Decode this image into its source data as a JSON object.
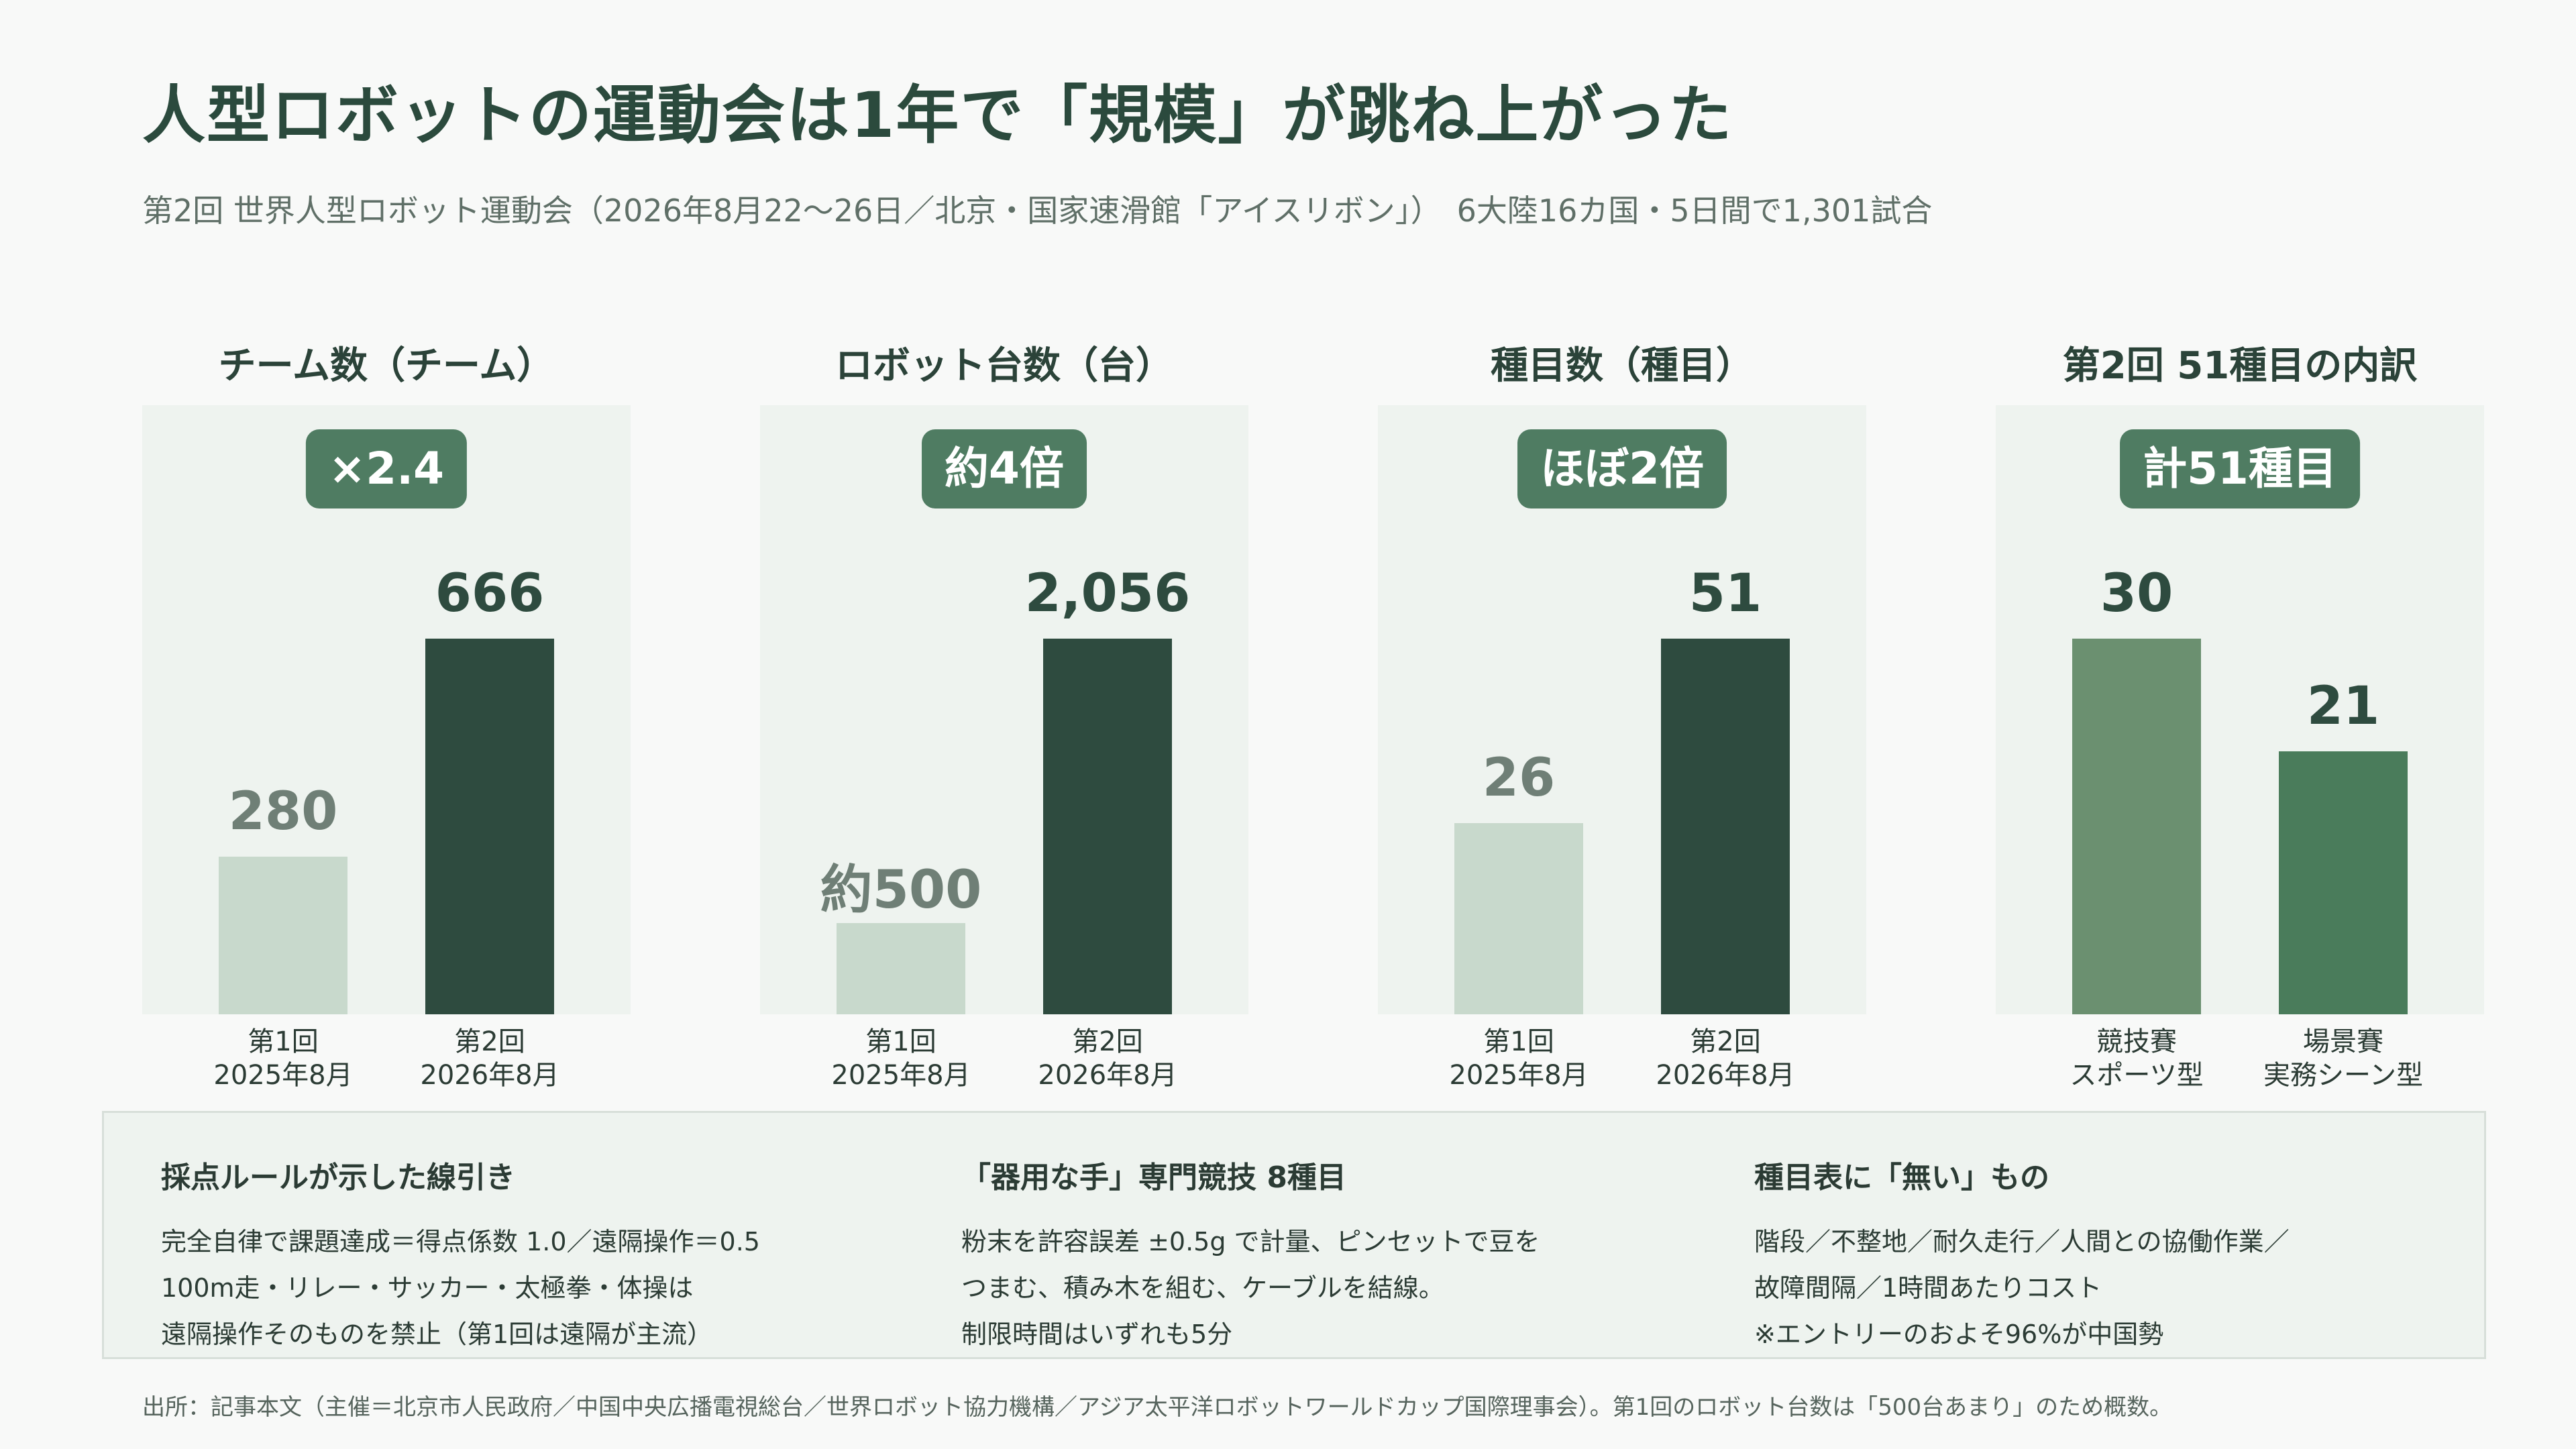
{
  "title": "人型ロボットの運動会は1年で「規模」が跳ね上がった",
  "subtitle": "第2回 世界人型ロボット運動会（2026年8月22〜26日／北京・国家速滑館「アイスリボン」）　6大陸16カ国・5日間で1,301試合",
  "colors": {
    "light_bar": "#c8d9cc",
    "dark_bar": "#2e4b3f",
    "sport_bar": "#6b9070",
    "scene_bar": "#4a7c5b",
    "badge": "#4f7c62",
    "panel_bg": "#eef3ef"
  },
  "chart_data": [
    {
      "type": "bar",
      "title": "チーム数（チーム）",
      "badge": "×2.4",
      "categories": [
        "第1回\n2025年8月",
        "第2回\n2026年8月"
      ],
      "values": [
        280,
        666
      ],
      "labels": [
        "280",
        "666"
      ],
      "ylim": [
        0,
        666
      ]
    },
    {
      "type": "bar",
      "title": "ロボット台数（台）",
      "badge": "約4倍",
      "categories": [
        "第1回\n2025年8月",
        "第2回\n2026年8月"
      ],
      "values": [
        500,
        2056
      ],
      "labels": [
        "約500",
        "2,056"
      ],
      "ylim": [
        0,
        2056
      ]
    },
    {
      "type": "bar",
      "title": "種目数（種目）",
      "badge": "ほぼ2倍",
      "categories": [
        "第1回\n2025年8月",
        "第2回\n2026年8月"
      ],
      "values": [
        26,
        51
      ],
      "labels": [
        "26",
        "51"
      ],
      "ylim": [
        0,
        51
      ]
    },
    {
      "type": "bar",
      "title": "第2回 51種目の内訳",
      "badge": "計51種目",
      "categories": [
        "競技賽\nスポーツ型",
        "場景賽\n実務シーン型"
      ],
      "values": [
        30,
        21
      ],
      "labels": [
        "30",
        "21"
      ],
      "ylim": [
        0,
        30
      ]
    }
  ],
  "notes": [
    {
      "title": "採点ルールが示した線引き",
      "lines": [
        "完全自律で課題達成＝得点係数 1.0／遠隔操作＝0.5",
        "100m走・リレー・サッカー・太極拳・体操は",
        "遠隔操作そのものを禁止（第1回は遠隔が主流）"
      ]
    },
    {
      "title": "「器用な手」専門競技 8種目",
      "lines": [
        "粉末を許容誤差 ±0.5g で計量、ピンセットで豆を",
        "つまむ、積み木を組む、ケーブルを結線。",
        "制限時間はいずれも5分"
      ]
    },
    {
      "title": "種目表に「無い」もの",
      "lines": [
        "階段／不整地／耐久走行／人間との協働作業／",
        "故障間隔／1時間あたりコスト",
        "※エントリーのおよそ96%が中国勢"
      ]
    }
  ],
  "source": "出所：記事本文（主催＝北京市人民政府／中国中央広播電視総台／世界ロボット協力機構／アジア太平洋ロボットワールドカップ国際理事会）。第1回のロボット台数は「500台あまり」のため概数。"
}
